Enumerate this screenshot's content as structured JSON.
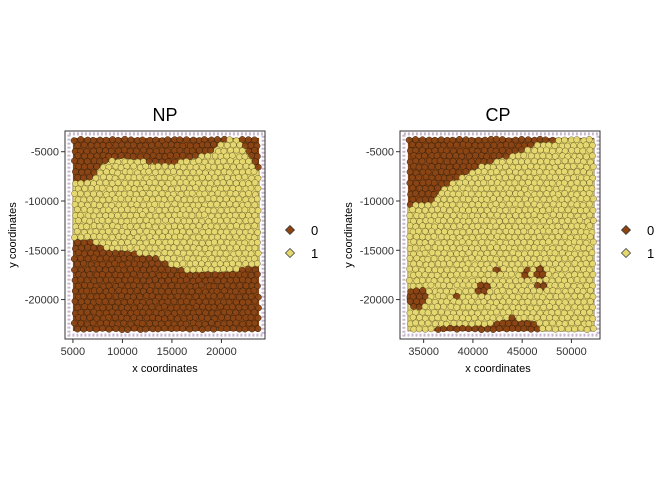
{
  "chart_data": [
    {
      "type": "scatter",
      "title": "NP",
      "xlabel": "x coordinates",
      "ylabel": "y coordinates",
      "xlim": [
        4200,
        24400
      ],
      "ylim": [
        -24000,
        -2900
      ],
      "xticks": [
        5000,
        10000,
        15000,
        20000
      ],
      "xtick_labels": [
        "5000",
        "10000",
        "15000",
        "20000"
      ],
      "yticks": [
        -5000,
        -10000,
        -15000,
        -20000
      ],
      "ytick_labels": [
        "-5000",
        "-10000",
        "-15000",
        "-20000"
      ],
      "tissue_region": {
        "x": [
          5000,
          23800
        ],
        "y": [
          -23200,
          -3600
        ]
      },
      "legend": [
        {
          "label": "0",
          "color": "#8B4513"
        },
        {
          "label": "1",
          "color": "#E6D870"
        }
      ],
      "category_1_boundary": [
        [
          5000,
          -8200
        ],
        [
          6500,
          -8000
        ],
        [
          8000,
          -6200
        ],
        [
          10000,
          -5600
        ],
        [
          12500,
          -6000
        ],
        [
          15500,
          -6200
        ],
        [
          18500,
          -5200
        ],
        [
          20500,
          -3800
        ],
        [
          21500,
          -3700
        ],
        [
          22500,
          -4500
        ],
        [
          23200,
          -6000
        ],
        [
          23800,
          -7000
        ],
        [
          23800,
          -16500
        ],
        [
          22000,
          -17000
        ],
        [
          20000,
          -17200
        ],
        [
          17500,
          -17200
        ],
        [
          15500,
          -16800
        ],
        [
          13500,
          -15800
        ],
        [
          11000,
          -15200
        ],
        [
          8500,
          -14800
        ],
        [
          6500,
          -14000
        ],
        [
          5000,
          -13800
        ]
      ]
    },
    {
      "type": "scatter",
      "title": "CP",
      "xlabel": "x coordinates",
      "ylabel": "y coordinates",
      "xlim": [
        32600,
        52900
      ],
      "ylim": [
        -24000,
        -2900
      ],
      "xticks": [
        35000,
        40000,
        45000,
        50000
      ],
      "xtick_labels": [
        "35000",
        "40000",
        "45000",
        "50000"
      ],
      "yticks": [
        -5000,
        -10000,
        -15000,
        -20000
      ],
      "ytick_labels": [
        "-5000",
        "-10000",
        "-15000",
        "-20000"
      ],
      "tissue_region": {
        "x": [
          33400,
          52300
        ],
        "y": [
          -23200,
          -3600
        ]
      },
      "legend": [
        {
          "label": "0",
          "color": "#8B4513"
        },
        {
          "label": "1",
          "color": "#E6D870"
        }
      ],
      "category_1_boundary": [
        [
          33400,
          -10500
        ],
        [
          35500,
          -10200
        ],
        [
          37500,
          -8300
        ],
        [
          39500,
          -7200
        ],
        [
          41500,
          -6200
        ],
        [
          44000,
          -5200
        ],
        [
          46500,
          -4200
        ],
        [
          49000,
          -3700
        ],
        [
          52300,
          -3700
        ],
        [
          52300,
          -23200
        ],
        [
          47000,
          -23200
        ],
        [
          46000,
          -22200
        ],
        [
          44000,
          -21800
        ],
        [
          42000,
          -22400
        ],
        [
          40000,
          -22700
        ],
        [
          38000,
          -22600
        ],
        [
          36000,
          -23000
        ],
        [
          33400,
          -23200
        ]
      ],
      "category_0_patches": [
        {
          "x": 34400,
          "y": -19800,
          "r": 1100
        },
        {
          "x": 41000,
          "y": -18800,
          "r": 800
        },
        {
          "x": 45300,
          "y": -17500,
          "r": 600
        },
        {
          "x": 46800,
          "y": -17200,
          "r": 700
        },
        {
          "x": 47000,
          "y": -18600,
          "r": 500
        },
        {
          "x": 42600,
          "y": -17100,
          "r": 350
        },
        {
          "x": 38200,
          "y": -19600,
          "r": 350
        }
      ]
    }
  ]
}
